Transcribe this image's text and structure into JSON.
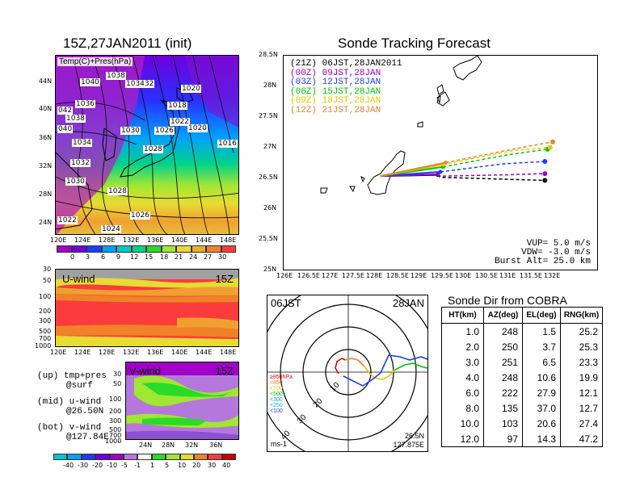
{
  "left": {
    "title": "15Z,27JAN2011 (init)",
    "map_label": "Temp(C)+Pres(hPa)",
    "lat_ticks": [
      "44N",
      "40N",
      "36N",
      "32N",
      "28N",
      "24N"
    ],
    "lon_ticks": [
      "120E",
      "124E",
      "128E",
      "132E",
      "136E",
      "140E",
      "144E",
      "148E"
    ],
    "isobars": [
      "1040",
      "1038",
      "103432",
      "1020",
      "1036",
      "1018",
      "042",
      "1038",
      "1022",
      "040",
      "1030",
      "1026",
      "1020",
      "1034",
      "1016",
      "1028",
      "1032",
      "1030",
      "1028",
      "1026",
      "1022",
      "1024"
    ],
    "temp_scale": [
      "0",
      "3",
      "6",
      "9",
      "12",
      "15",
      "18",
      "21",
      "24",
      "27",
      "30"
    ],
    "temp_colors": [
      "#a000c8",
      "#6e00dc",
      "#1e3cff",
      "#00a0ff",
      "#00c8c8",
      "#00d28c",
      "#28dc28",
      "#a0e632",
      "#e6dc32",
      "#e6af2d",
      "#f08228",
      "#fa3c3c"
    ],
    "uwind_label": "U-wind",
    "uwind_time": "15Z",
    "p_ticks": [
      "30",
      "50",
      "100",
      "200",
      "300",
      "500",
      "700",
      "1000"
    ],
    "vwind_label": "V-wind",
    "vwind_time": "15Z",
    "vwind_lat_ticks": [
      "24N",
      "28N",
      "32N",
      "36N"
    ],
    "wind_scale": [
      "-40",
      "-30",
      "-20",
      "-10",
      "-5",
      "-1",
      "1",
      "5",
      "10",
      "20",
      "30",
      "40"
    ],
    "notes": [
      {
        "a": "(up) tmp+pres",
        "b": "@surf"
      },
      {
        "a": "(mid) u-wind",
        "b": "@26.50N"
      },
      {
        "a": "(bot) v-wind",
        "b": "@127.84E"
      }
    ]
  },
  "forecast": {
    "title": "Sonde Tracking Forecast",
    "lat_ticks": [
      "28.5N",
      "28N",
      "27.5N",
      "27N",
      "26.5N",
      "26N",
      "25.5N",
      "25N"
    ],
    "lon_ticks": [
      "126E",
      "126.5E",
      "127E",
      "127.5E",
      "128E",
      "128.5E",
      "129E",
      "129.5E",
      "130E",
      "130.5E",
      "131E",
      "131.5E",
      "132E"
    ],
    "legend": [
      {
        "label": "(21Z) 06JST,28JAN2011",
        "color": "#000000"
      },
      {
        "label": "(00Z) 09JST,28JAN",
        "color": "#a000c8"
      },
      {
        "label": "(03Z) 12JST,28JAN",
        "color": "#1e3cff"
      },
      {
        "label": "(06Z) 15JST,28JAN",
        "color": "#00c800"
      },
      {
        "label": "(09Z) 18JST,28JAN",
        "color": "#e6c800"
      },
      {
        "label": "(12Z) 21JST,28JAN",
        "color": "#f08228"
      }
    ],
    "params": [
      "VUP= 5.0 m/s",
      "VDW= -3.0 m/s",
      "Burst Alt= 25.0 km"
    ],
    "tracks": [
      {
        "color": "#000000",
        "pts": [
          [
            127.85,
            26.53
          ],
          [
            128.95,
            26.55
          ],
          [
            129.0,
            26.51
          ],
          [
            130.2,
            26.48
          ],
          [
            131.0,
            26.46
          ]
        ]
      },
      {
        "color": "#a000c8",
        "pts": [
          [
            127.85,
            26.53
          ],
          [
            128.95,
            26.56
          ],
          [
            129.0,
            26.53
          ],
          [
            130.2,
            26.55
          ],
          [
            131.0,
            26.57
          ]
        ]
      },
      {
        "color": "#1e3cff",
        "pts": [
          [
            127.85,
            26.53
          ],
          [
            129.0,
            26.6
          ],
          [
            130.2,
            26.73
          ],
          [
            131.0,
            26.77
          ]
        ]
      },
      {
        "color": "#00c800",
        "pts": [
          [
            127.85,
            26.53
          ],
          [
            129.05,
            26.68
          ],
          [
            130.3,
            26.88
          ],
          [
            131.05,
            26.97
          ]
        ]
      },
      {
        "color": "#e6c800",
        "pts": [
          [
            127.85,
            26.53
          ],
          [
            129.05,
            26.72
          ],
          [
            130.4,
            26.95
          ],
          [
            131.1,
            27.0
          ]
        ]
      },
      {
        "color": "#f08228",
        "pts": [
          [
            127.85,
            26.53
          ],
          [
            129.1,
            26.75
          ],
          [
            130.5,
            26.99
          ],
          [
            131.15,
            27.09
          ]
        ]
      }
    ]
  },
  "polar": {
    "time": "06JST",
    "date": "28JAN",
    "range_labels": [
      "10",
      "20",
      "30",
      "40"
    ],
    "level_legend": [
      {
        "label": "≥850hPa",
        "color": "#e60000"
      },
      {
        "label": "<850",
        "color": "#f08228"
      },
      {
        "label": "<700",
        "color": "#e6c800"
      },
      {
        "label": "<500",
        "color": "#00c800"
      },
      {
        "label": "<300",
        "color": "#00a0c8"
      },
      {
        "label": "<250",
        "color": "#00c8c8"
      },
      {
        "label": "<100",
        "color": "#1e3cff"
      }
    ],
    "position": "26.5N",
    "position2": "127.875E",
    "unit": "ms-1"
  },
  "table": {
    "title": "Sonde Dir from COBRA",
    "headers": [
      "HT(km)",
      "AZ(deg)",
      "EL(deg)",
      "RNG(km)"
    ],
    "rows": [
      [
        "1.0",
        "248",
        "1.5",
        "25.2"
      ],
      [
        "2.0",
        "250",
        "3.7",
        "25.3"
      ],
      [
        "3.0",
        "251",
        "6.5",
        "23.3"
      ],
      [
        "4.0",
        "248",
        "10.6",
        "19.9"
      ],
      [
        "6.0",
        "222",
        "27.9",
        "12.1"
      ],
      [
        "8.0",
        "135",
        "37.0",
        "12.7"
      ],
      [
        "10.0",
        "103",
        "20.6",
        "27.4"
      ],
      [
        "12.0",
        "97",
        "14.3",
        "47.2"
      ]
    ]
  }
}
